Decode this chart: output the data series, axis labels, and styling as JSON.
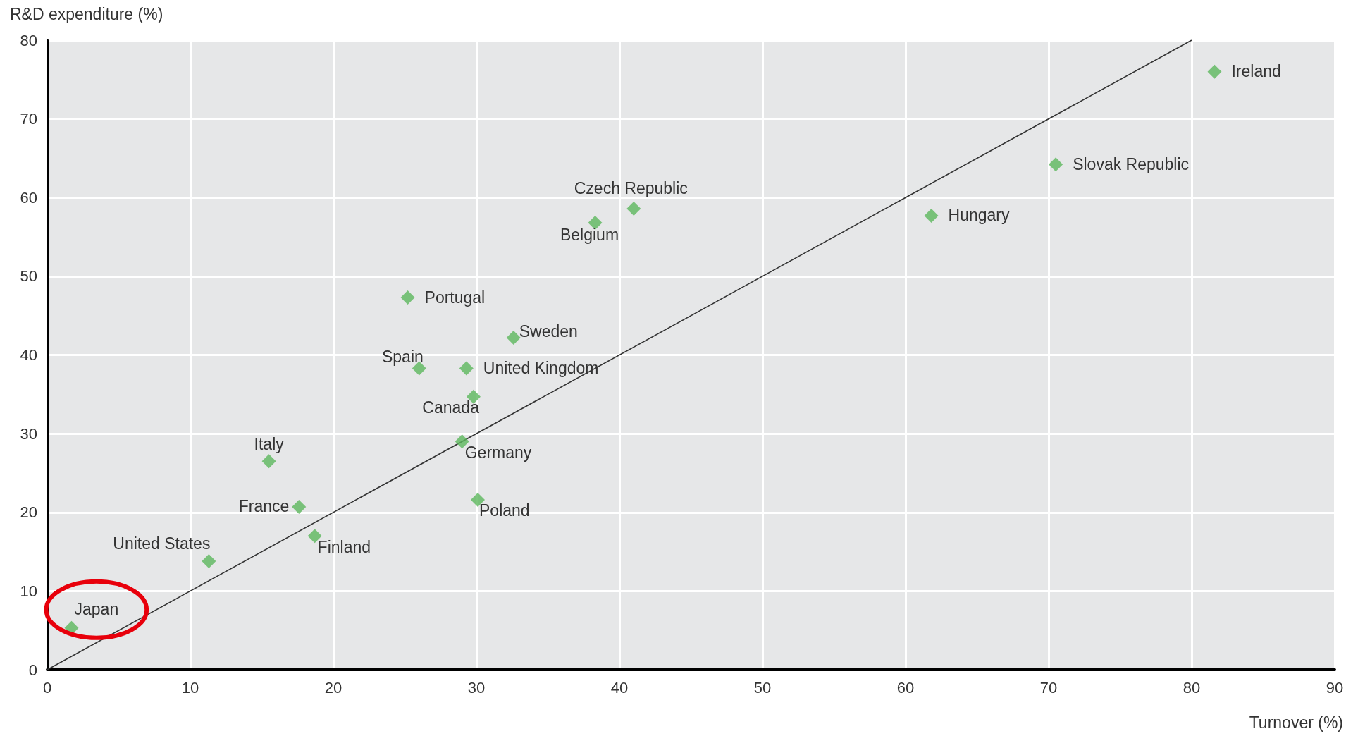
{
  "chart_data": {
    "type": "scatter",
    "xlabel": "Turnover (%)",
    "ylabel": "R&D expenditure (%)",
    "xlim": [
      0,
      90
    ],
    "xticks": [
      0,
      10,
      20,
      30,
      40,
      50,
      60,
      70,
      80,
      90
    ],
    "ylim": [
      0,
      80
    ],
    "yticks": [
      0,
      10,
      20,
      30,
      40,
      50,
      60,
      70,
      80
    ],
    "grid": true,
    "marker": "diamond",
    "series": [
      {
        "type": "scatter",
        "color": "#5cb85c",
        "x": [
          1.7,
          11.3,
          18.7,
          17.6,
          15.5,
          30.1,
          29.0,
          29.8,
          26.0,
          29.3,
          32.6,
          25.2,
          38.3,
          41.0,
          61.8,
          70.5,
          81.6
        ],
        "values": [
          5.3,
          13.8,
          17.0,
          20.7,
          26.5,
          21.6,
          29.0,
          34.7,
          38.3,
          38.3,
          42.2,
          47.3,
          56.8,
          58.6,
          57.7,
          64.2,
          76.0
        ]
      },
      {
        "type": "line",
        "color": "#333333",
        "marker": "none",
        "x": [
          0,
          80
        ],
        "values": [
          0,
          80
        ]
      }
    ],
    "annotations": [
      {
        "text": "Japan",
        "x": 1.7,
        "y": 5.3
      },
      {
        "text": "United States",
        "x": 11.3,
        "y": 13.8
      },
      {
        "text": "Finland",
        "x": 18.7,
        "y": 17.0
      },
      {
        "text": "France",
        "x": 17.6,
        "y": 20.7
      },
      {
        "text": "Italy",
        "x": 15.5,
        "y": 26.5
      },
      {
        "text": "Poland",
        "x": 30.1,
        "y": 21.6
      },
      {
        "text": "Germany",
        "x": 29.0,
        "y": 29.0
      },
      {
        "text": "Canada",
        "x": 29.8,
        "y": 34.7
      },
      {
        "text": "Spain",
        "x": 26.0,
        "y": 38.3
      },
      {
        "text": "United Kingdom",
        "x": 29.3,
        "y": 38.3
      },
      {
        "text": "Sweden",
        "x": 32.6,
        "y": 42.2
      },
      {
        "text": "Portugal",
        "x": 25.2,
        "y": 47.3
      },
      {
        "text": "Belgium",
        "x": 38.3,
        "y": 56.8
      },
      {
        "text": "Czech Republic",
        "x": 41.0,
        "y": 58.6
      },
      {
        "text": "Hungary",
        "x": 61.8,
        "y": 57.7
      },
      {
        "text": "Slovak Republic",
        "x": 70.5,
        "y": 64.2
      },
      {
        "text": "Ireland",
        "x": 81.6,
        "y": 76.0
      }
    ]
  }
}
